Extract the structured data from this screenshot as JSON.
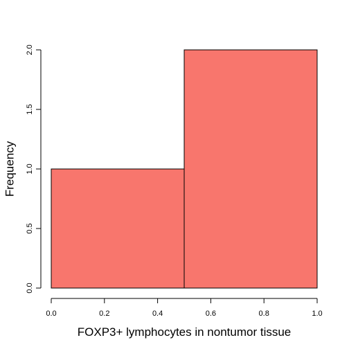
{
  "chart_data": {
    "type": "bar",
    "histogram": true,
    "title": "",
    "xlabel": "FOXP3+ lymphocytes in nontumor tissue",
    "ylabel": "Frequency",
    "bins": [
      {
        "x0": 0.0,
        "x1": 0.5,
        "value": 1
      },
      {
        "x0": 0.5,
        "x1": 1.0,
        "value": 2
      }
    ],
    "xlim": [
      0.0,
      1.0
    ],
    "ylim": [
      0.0,
      2.0
    ],
    "x_ticks": [
      0.0,
      0.2,
      0.4,
      0.6,
      0.8,
      1.0
    ],
    "x_tick_labels": [
      "0.0",
      "0.2",
      "0.4",
      "0.6",
      "0.8",
      "1.0"
    ],
    "y_ticks": [
      0.0,
      0.5,
      1.0,
      1.5,
      2.0
    ],
    "y_tick_labels": [
      "0.0",
      "0.5",
      "1.0",
      "1.5",
      "2.0"
    ],
    "bar_color": "#f8766d",
    "grid": false,
    "legend": "none"
  }
}
